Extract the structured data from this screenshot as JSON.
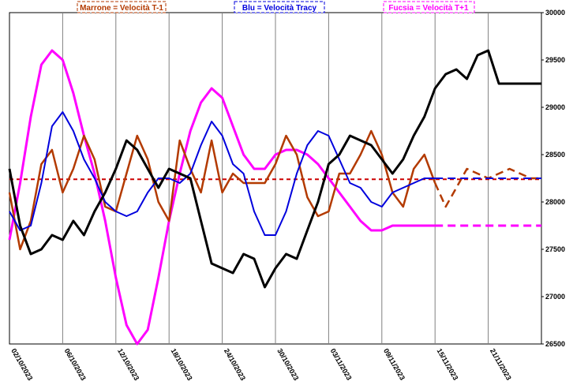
{
  "chart_data": {
    "type": "line",
    "title": "",
    "xlabel": "",
    "ylabel": "",
    "ylim": [
      26500,
      30000
    ],
    "y_ticks": [
      26500,
      27000,
      27500,
      28000,
      28500,
      29000,
      29500,
      30000
    ],
    "x_ticks": [
      "02/10/2023",
      "06/10/2023",
      "12/10/2023",
      "18/10/2023",
      "24/10/2023",
      "30/10/2023",
      "03/11/2023",
      "09/11/2023",
      "15/11/2023",
      "21/11/2023"
    ],
    "x_index_range": [
      0,
      50
    ],
    "grid": "vertical lines at date ticks",
    "reference_line": {
      "value": 28240,
      "color": "#cc0000",
      "style": "dashed"
    },
    "legend": [
      {
        "label": "Marrone = Velocità T-1",
        "color": "#b33a00"
      },
      {
        "label": "Blu = Velocità Tracy",
        "color": "#0000dd"
      },
      {
        "label": "Fucsia = Velocità T+1",
        "color": "#ff00ff"
      }
    ],
    "series": [
      {
        "color": "#000000",
        "x": [
          0,
          1,
          2,
          3,
          4,
          5,
          6,
          7,
          8,
          9,
          10,
          11,
          12,
          13,
          14,
          15,
          16,
          17,
          18,
          19,
          20,
          21,
          22,
          23,
          24,
          25,
          26,
          27,
          28,
          29,
          30,
          31,
          32,
          33,
          34,
          35,
          36,
          37,
          38,
          39,
          40,
          41,
          42,
          43,
          44,
          45,
          46,
          47,
          48,
          49,
          50
        ],
        "values": [
          28350,
          27750,
          27450,
          27500,
          27650,
          27600,
          27800,
          27650,
          27900,
          28100,
          28350,
          28650,
          28550,
          28350,
          28150,
          28350,
          28300,
          28250,
          27800,
          27350,
          27300,
          27250,
          27450,
          27400,
          27100,
          27300,
          27450,
          27400,
          27700,
          28000,
          28400,
          28500,
          28700,
          28650,
          28600,
          28450,
          28300,
          28450,
          28700,
          28900,
          29200,
          29350,
          29400,
          29300,
          29550,
          29600,
          29250,
          29250,
          29250,
          29250,
          29250
        ]
      },
      {
        "color": "#b33a00",
        "x": [
          0,
          1,
          2,
          3,
          4,
          5,
          6,
          7,
          8,
          9,
          10,
          11,
          12,
          13,
          14,
          15,
          16,
          17,
          18,
          19,
          20,
          21,
          22,
          23,
          24,
          25,
          26,
          27,
          28,
          29,
          30,
          31,
          32,
          33,
          34,
          35,
          36,
          37,
          38,
          39,
          40,
          41,
          42,
          43,
          44,
          45,
          46,
          47,
          48,
          49,
          50
        ],
        "values": [
          28100,
          27500,
          27800,
          28400,
          28550,
          28100,
          28350,
          28700,
          28450,
          27950,
          27900,
          28300,
          28700,
          28450,
          28000,
          27800,
          28650,
          28350,
          28100,
          28650,
          28100,
          28300,
          28200,
          28200,
          28200,
          28400,
          28700,
          28500,
          28050,
          27850,
          27900,
          28300,
          28300,
          28500,
          28750,
          28500,
          28100,
          27950,
          28350,
          28500,
          28200,
          27950,
          28150,
          28350,
          28300,
          28250,
          28300,
          28350,
          28300,
          28250,
          28250
        ]
      },
      {
        "color": "#0000dd",
        "x": [
          0,
          1,
          2,
          3,
          4,
          5,
          6,
          7,
          8,
          9,
          10,
          11,
          12,
          13,
          14,
          15,
          16,
          17,
          18,
          19,
          20,
          21,
          22,
          23,
          24,
          25,
          26,
          27,
          28,
          29,
          30,
          31,
          32,
          33,
          34,
          35,
          36,
          37,
          38,
          39,
          40,
          41,
          42,
          43,
          44,
          45,
          46,
          47,
          48,
          49,
          50
        ],
        "values": [
          27900,
          27700,
          27750,
          28200,
          28800,
          28950,
          28750,
          28450,
          28250,
          28000,
          27900,
          27850,
          27900,
          28100,
          28250,
          28250,
          28200,
          28300,
          28600,
          28850,
          28700,
          28400,
          28300,
          27900,
          27650,
          27650,
          27900,
          28300,
          28600,
          28750,
          28700,
          28450,
          28200,
          28150,
          28000,
          27950,
          28100,
          28150,
          28200,
          28250,
          28250,
          28250,
          28250,
          28250,
          28250,
          28250,
          28250,
          28250,
          28250,
          28250,
          28250
        ]
      },
      {
        "color": "#ff00ff",
        "x": [
          0,
          1,
          2,
          3,
          4,
          5,
          6,
          7,
          8,
          9,
          10,
          11,
          12,
          13,
          14,
          15,
          16,
          17,
          18,
          19,
          20,
          21,
          22,
          23,
          24,
          25,
          26,
          27,
          28,
          29,
          30,
          31,
          32,
          33,
          34,
          35,
          36,
          37,
          38,
          39,
          40,
          41,
          42,
          43,
          44,
          45,
          46,
          47,
          48,
          49,
          50
        ],
        "values": [
          27600,
          28200,
          28900,
          29450,
          29600,
          29500,
          29150,
          28700,
          28300,
          27800,
          27200,
          26700,
          26500,
          26650,
          27200,
          27800,
          28300,
          28750,
          29050,
          29200,
          29100,
          28800,
          28500,
          28350,
          28350,
          28500,
          28550,
          28550,
          28500,
          28400,
          28250,
          28100,
          27950,
          27800,
          27700,
          27700,
          27750,
          27750,
          27750,
          27750,
          27750,
          27750,
          27750,
          27750,
          27750,
          27750,
          27750,
          27750,
          27750,
          27750,
          27750
        ]
      }
    ]
  }
}
